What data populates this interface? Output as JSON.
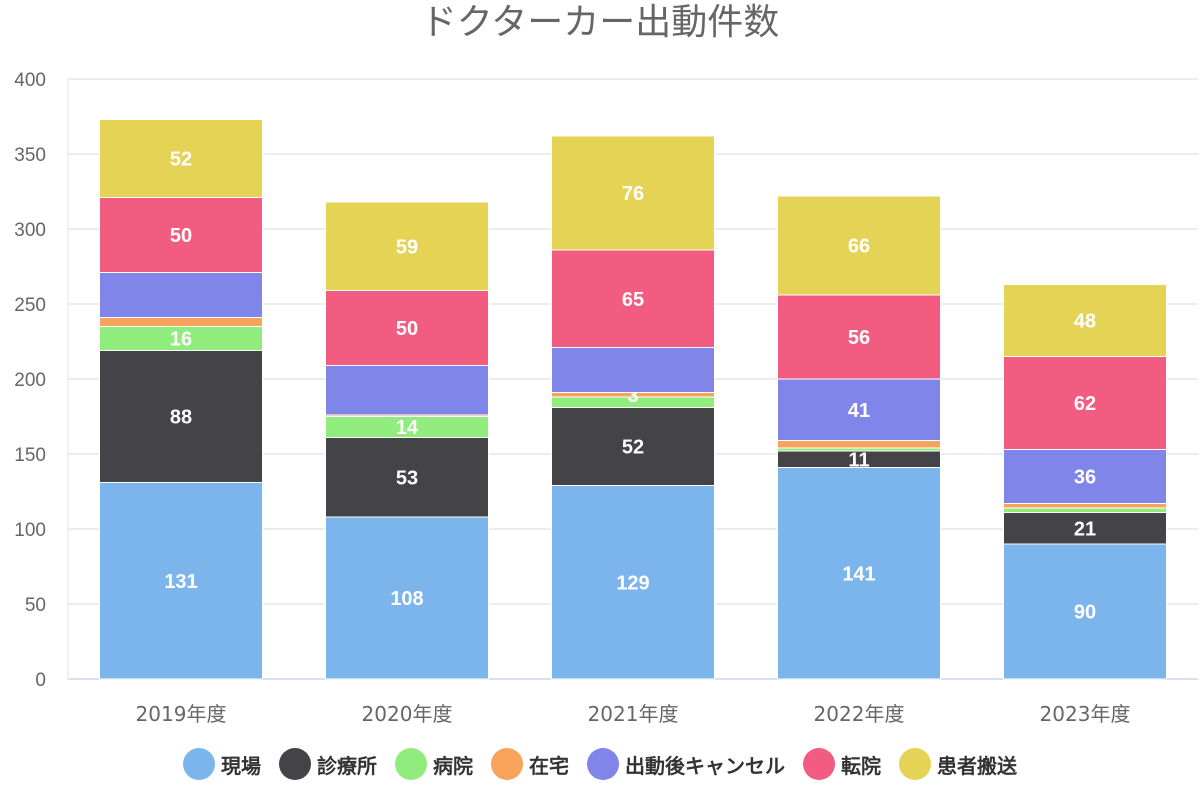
{
  "chart_data": {
    "type": "bar",
    "stacked": true,
    "title": "ドクターカー出動件数",
    "xlabel": "",
    "ylabel": "",
    "ylim": [
      0,
      400
    ],
    "yticks": [
      0,
      50,
      100,
      150,
      200,
      250,
      300,
      350,
      400
    ],
    "grid": true,
    "legend_position": "bottom",
    "categories": [
      "2019年度",
      "2020年度",
      "2021年度",
      "2022年度",
      "2023年度"
    ],
    "series": [
      {
        "name": "現場",
        "color": "#7cb5ec",
        "values": [
          131,
          108,
          129,
          141,
          90
        ],
        "data_labels": [
          131,
          108,
          129,
          141,
          90
        ]
      },
      {
        "name": "診療所",
        "color": "#434348",
        "values": [
          88,
          53,
          52,
          11,
          21
        ],
        "data_labels": [
          88,
          53,
          52,
          11,
          21
        ]
      },
      {
        "name": "病院",
        "color": "#90ed7d",
        "values": [
          16,
          14,
          7,
          2,
          3
        ],
        "data_labels": [
          16,
          14,
          null,
          null,
          null
        ]
      },
      {
        "name": "在宅",
        "color": "#f7a35c",
        "values": [
          6,
          1,
          3,
          5,
          3
        ],
        "data_labels": [
          null,
          null,
          3,
          null,
          null
        ]
      },
      {
        "name": "出動後キャンセル",
        "color": "#8085e9",
        "values": [
          30,
          33,
          30,
          41,
          36
        ],
        "data_labels": [
          null,
          null,
          null,
          41,
          36
        ]
      },
      {
        "name": "転院",
        "color": "#f15c80",
        "values": [
          50,
          50,
          65,
          56,
          62
        ],
        "data_labels": [
          50,
          50,
          65,
          56,
          62
        ]
      },
      {
        "name": "患者搬送",
        "color": "#e4d354",
        "values": [
          52,
          59,
          76,
          66,
          48
        ],
        "data_labels": [
          52,
          59,
          76,
          66,
          48
        ]
      }
    ]
  }
}
